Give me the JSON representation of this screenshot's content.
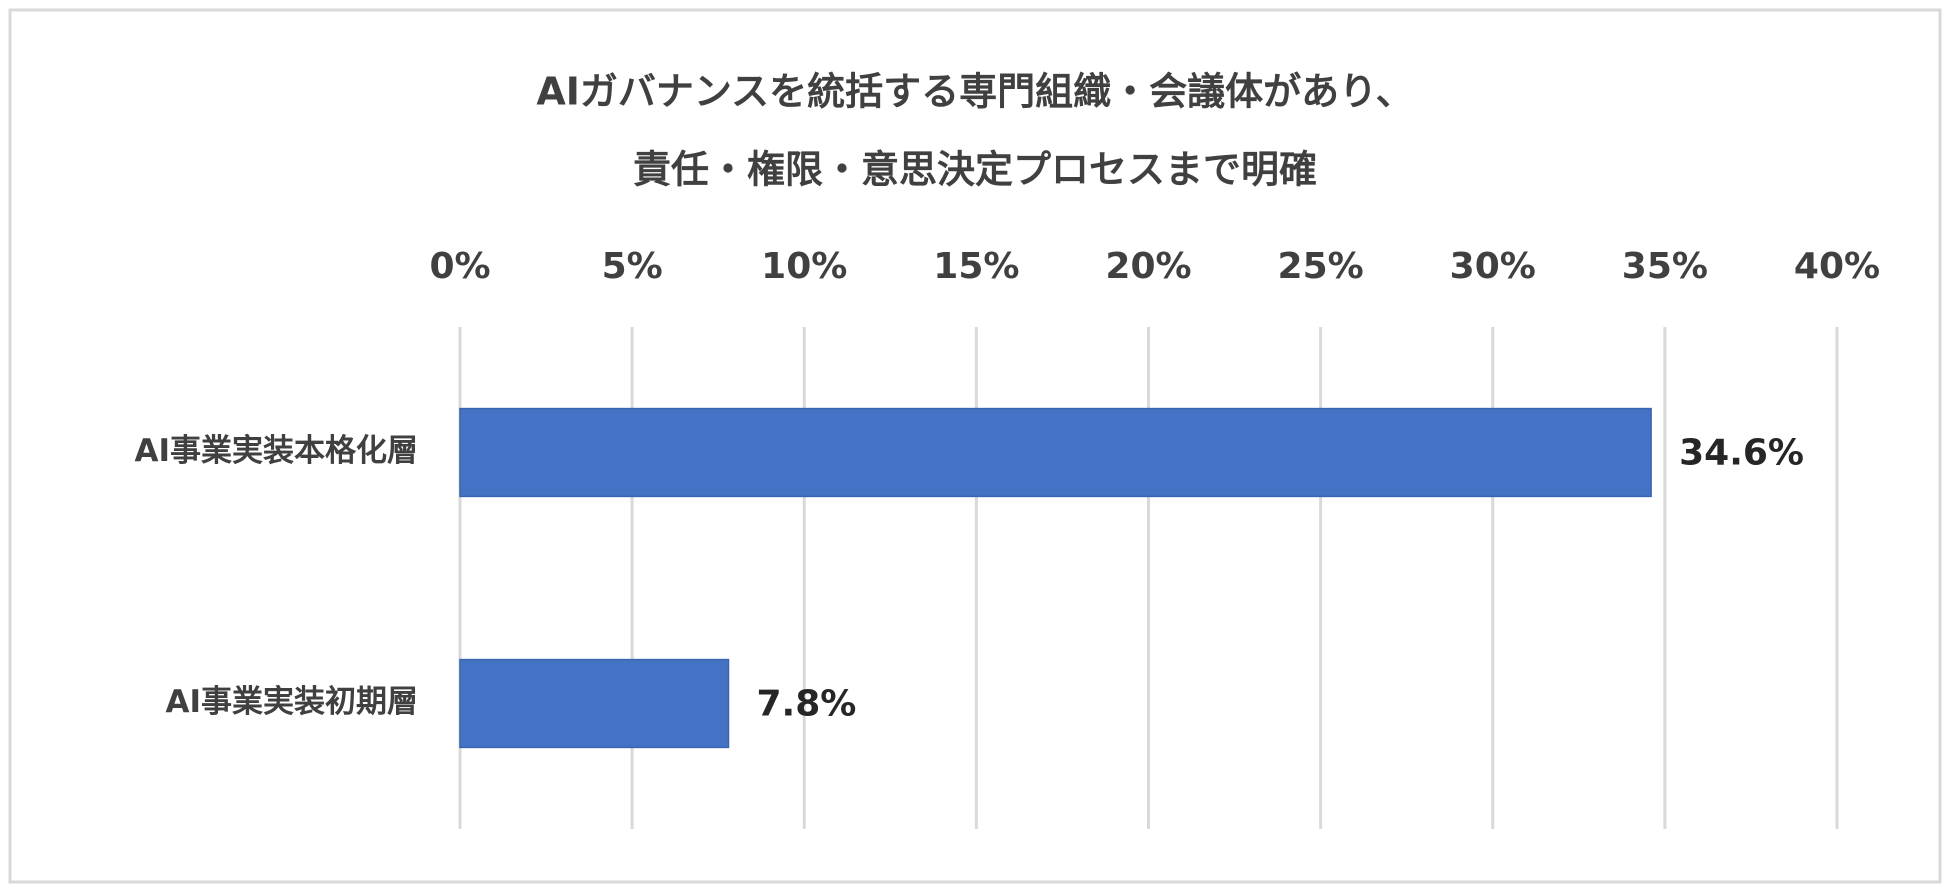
{
  "chart_data": {
    "type": "bar",
    "orientation": "horizontal",
    "title": [
      "AIガバナンスを統括する専門組織・会議体があり、",
      "責任・権限・意思決定プロセスまで明確"
    ],
    "categories": [
      "AI事業実装本格化層",
      "AI事業実装初期層"
    ],
    "values": [
      34.6,
      7.8
    ],
    "value_labels": [
      "34.6%",
      "7.8%"
    ],
    "color": "#4472c4",
    "xlim": [
      0,
      40
    ],
    "xticks": [
      {
        "value": 0,
        "label": "0%"
      },
      {
        "value": 5,
        "label": "5%"
      },
      {
        "value": 10,
        "label": "10%"
      },
      {
        "value": 15,
        "label": "15%"
      },
      {
        "value": 20,
        "label": "20%"
      },
      {
        "value": 25,
        "label": "25%"
      },
      {
        "value": 30,
        "label": "30%"
      },
      {
        "value": 35,
        "label": "35%"
      },
      {
        "value": 40,
        "label": "40%"
      }
    ],
    "grid": true
  }
}
